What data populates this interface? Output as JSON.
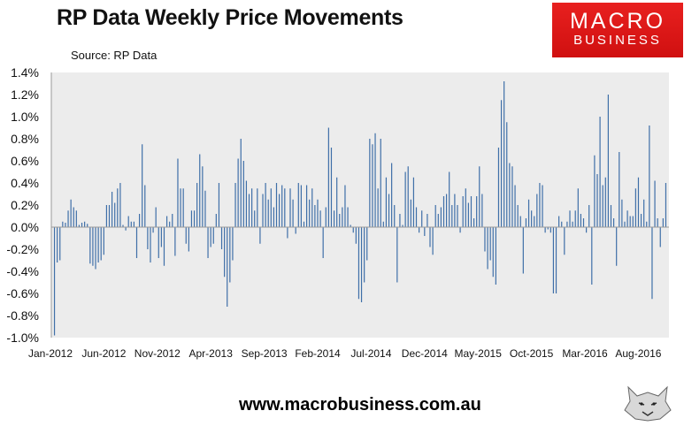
{
  "header": {
    "title": "RP Data Weekly Price Movements",
    "source": "Source: RP Data"
  },
  "logo": {
    "line1": "MACRO",
    "line2": "BUSINESS"
  },
  "footer": {
    "url": "www.macrobusiness.com.au"
  },
  "colors": {
    "bar": "#3f6fa8",
    "plot_bg": "#ececec",
    "logo_red": "#e01a1a"
  },
  "chart_data": {
    "type": "bar",
    "title": "RP Data Weekly Price Movements",
    "xlabel": "",
    "ylabel": "",
    "ylim": [
      -1.0,
      1.4
    ],
    "y_ticks": [
      -1.0,
      -0.8,
      -0.6,
      -0.4,
      -0.2,
      0.0,
      0.2,
      0.4,
      0.6,
      0.8,
      1.0,
      1.2,
      1.4
    ],
    "y_tick_labels": [
      "-1.0%",
      "-0.8%",
      "-0.6%",
      "-0.4%",
      "-0.2%",
      "0.0%",
      "0.2%",
      "0.4%",
      "0.6%",
      "0.8%",
      "1.0%",
      "1.2%",
      "1.4%"
    ],
    "x_tick_labels": [
      "Jan-2012",
      "Jun-2012",
      "Nov-2012",
      "Apr-2013",
      "Sep-2013",
      "Feb-2014",
      "Jul-2014",
      "Dec-2014",
      "May-2015",
      "Oct-2015",
      "Mar-2016",
      "Aug-2016"
    ],
    "grid": false,
    "legend": "none",
    "x_start": "Jan-2012",
    "x_end": "Nov-2016",
    "frequency": "weekly",
    "values": [
      -0.98,
      -0.32,
      -0.3,
      0.05,
      0.04,
      0.15,
      0.25,
      0.18,
      0.15,
      0.02,
      0.04,
      0.05,
      0.03,
      -0.33,
      -0.35,
      -0.38,
      -0.32,
      -0.3,
      -0.25,
      0.2,
      0.2,
      0.32,
      0.22,
      0.35,
      0.4,
      0.02,
      -0.03,
      0.1,
      0.05,
      0.05,
      -0.28,
      0.12,
      0.75,
      0.38,
      -0.2,
      -0.32,
      -0.05,
      0.18,
      -0.28,
      -0.18,
      -0.35,
      0.1,
      0.05,
      0.12,
      -0.26,
      0.62,
      0.35,
      0.35,
      -0.15,
      -0.22,
      0.15,
      0.15,
      0.4,
      0.66,
      0.55,
      0.33,
      -0.28,
      -0.18,
      -0.15,
      0.12,
      0.4,
      -0.2,
      -0.45,
      -0.72,
      -0.5,
      -0.3,
      0.4,
      0.62,
      0.8,
      0.6,
      0.42,
      0.3,
      0.35,
      0.15,
      0.35,
      -0.15,
      0.3,
      0.4,
      0.25,
      0.35,
      0.18,
      0.4,
      0.3,
      0.38,
      0.35,
      -0.1,
      0.35,
      0.25,
      -0.06,
      0.4,
      0.38,
      0.05,
      0.38,
      0.25,
      0.35,
      0.2,
      0.25,
      0.15,
      -0.28,
      0.18,
      0.9,
      0.72,
      0.15,
      0.45,
      0.12,
      0.18,
      0.38,
      0.18,
      0.02,
      -0.05,
      -0.15,
      -0.65,
      -0.68,
      -0.5,
      -0.3,
      0.8,
      0.75,
      0.85,
      0.35,
      0.8,
      0.05,
      0.45,
      0.3,
      0.58,
      0.2,
      -0.5,
      0.12,
      0.02,
      0.5,
      0.55,
      0.25,
      0.45,
      0.18,
      -0.05,
      0.15,
      -0.08,
      0.12,
      -0.18,
      -0.25,
      0.2,
      0.12,
      0.18,
      0.28,
      0.3,
      0.5,
      0.2,
      0.3,
      0.2,
      -0.05,
      0.28,
      0.35,
      0.22,
      0.28,
      0.08,
      0.28,
      0.55,
      0.3,
      -0.22,
      -0.38,
      -0.3,
      -0.45,
      -0.52,
      0.72,
      1.15,
      1.32,
      0.95,
      0.58,
      0.55,
      0.38,
      0.2,
      0.1,
      -0.42,
      0.08,
      0.25,
      0.15,
      0.1,
      0.3,
      0.4,
      0.38,
      -0.05,
      -0.02,
      -0.05,
      -0.6,
      -0.6,
      0.1,
      0.05,
      -0.25,
      0.05,
      0.15,
      0.05,
      0.15,
      0.35,
      0.12,
      0.08,
      -0.05,
      0.2,
      -0.52,
      0.65,
      0.48,
      1.0,
      0.38,
      0.45,
      1.2,
      0.2,
      0.08,
      -0.35,
      0.68,
      0.25,
      0.05,
      0.15,
      0.1,
      0.1,
      0.35,
      0.45,
      0.12,
      0.25,
      0.05,
      0.92,
      -0.65,
      0.42,
      0.08,
      -0.18,
      0.08,
      0.4
    ]
  }
}
